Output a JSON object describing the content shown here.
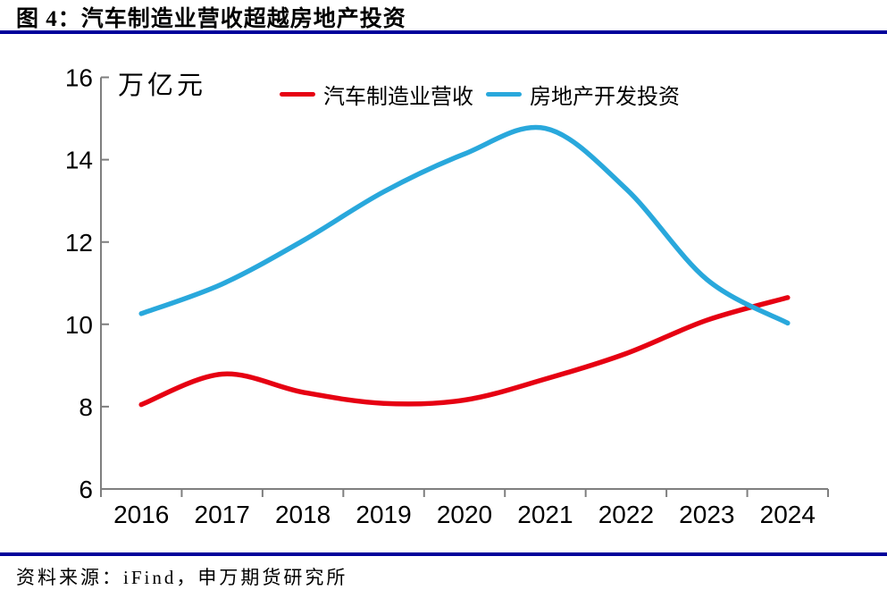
{
  "header": {
    "title": "图 4：汽车制造业营收超越房地产投资"
  },
  "colors": {
    "rule": "#00009b",
    "axis": "#7f7f7f",
    "text": "#000000",
    "auto_revenue_line": "#e60012",
    "realestate_line": "#29a8dc"
  },
  "chart_data": {
    "type": "line",
    "title": "图 4：汽车制造业营收超越房地产投资",
    "unit_label": "万亿元",
    "xlabel": "",
    "ylabel": "万亿元",
    "categories": [
      "2016",
      "2017",
      "2018",
      "2019",
      "2020",
      "2021",
      "2022",
      "2023",
      "2024"
    ],
    "series": [
      {
        "name": "汽车制造业营收",
        "color": "#e60012",
        "values": [
          8.05,
          8.79,
          8.35,
          8.08,
          8.16,
          8.67,
          9.29,
          10.1,
          10.65
        ]
      },
      {
        "name": "房地产开发投资",
        "color": "#29a8dc",
        "values": [
          10.26,
          10.98,
          12.03,
          13.22,
          14.14,
          14.76,
          13.29,
          11.09,
          10.03
        ]
      }
    ],
    "ylim": [
      6,
      16
    ],
    "yticks": [
      6,
      8,
      10,
      12,
      14,
      16
    ],
    "grid": false,
    "legend_position": "top"
  },
  "footer": {
    "source": "资料来源：iFind，申万期货研究所"
  }
}
